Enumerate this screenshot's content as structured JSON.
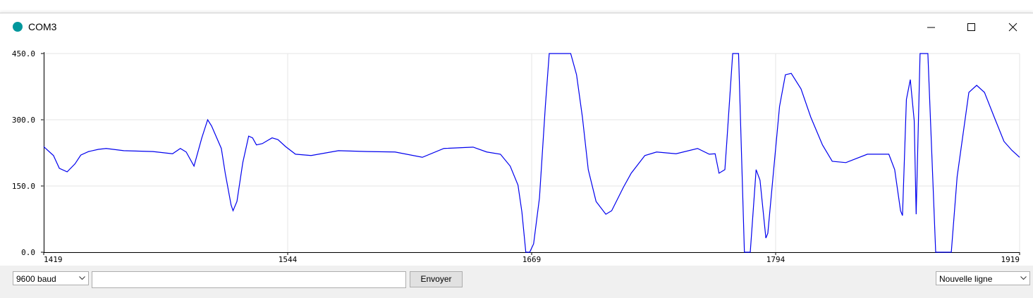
{
  "window": {
    "title": "COM3"
  },
  "footer": {
    "baud": "9600 baud",
    "send": "Envoyer",
    "line_ending": "Nouvelle ligne"
  },
  "chart_data": {
    "type": "line",
    "color": "#0000ee",
    "grid": true,
    "x": [
      1419,
      1424,
      1427,
      1431,
      1435,
      1438,
      1442,
      1447,
      1451,
      1460,
      1475,
      1485,
      1489,
      1492,
      1496,
      1500,
      1503,
      1505,
      1510,
      1512,
      1515,
      1516,
      1518,
      1521,
      1524,
      1526,
      1528,
      1531,
      1536,
      1539,
      1543,
      1548,
      1556,
      1570,
      1585,
      1599,
      1613,
      1624,
      1639,
      1646,
      1653,
      1658,
      1662,
      1664,
      1666,
      1668,
      1670,
      1673,
      1676,
      1678,
      1689,
      1692,
      1695,
      1698,
      1702,
      1707,
      1710,
      1716,
      1720,
      1727,
      1733,
      1743,
      1754,
      1760,
      1763,
      1765,
      1768,
      1769,
      1772,
      1775,
      1778,
      1781,
      1784,
      1786,
      1789,
      1790,
      1793,
      1796,
      1799,
      1802,
      1807,
      1812,
      1818,
      1823,
      1830,
      1841,
      1852,
      1855,
      1858,
      1859,
      1861,
      1863,
      1865,
      1866,
      1868,
      1872,
      1876,
      1884,
      1887,
      1893,
      1897,
      1901,
      1906,
      1911,
      1915,
      1919
    ],
    "values": [
      239,
      219,
      190,
      182,
      200,
      220,
      228,
      233,
      235,
      230,
      228,
      223,
      235,
      227,
      195,
      259,
      300,
      286,
      235,
      179,
      107,
      94,
      115,
      203,
      263,
      259,
      243,
      246,
      259,
      255,
      239,
      222,
      219,
      230,
      228,
      227,
      215,
      235,
      238,
      227,
      222,
      195,
      152,
      91,
      0,
      0,
      19,
      123,
      330,
      450,
      450,
      402,
      306,
      187,
      115,
      86,
      94,
      147,
      179,
      219,
      227,
      223,
      235,
      222,
      223,
      179,
      187,
      251,
      450,
      450,
      0,
      0,
      187,
      163,
      32,
      43,
      187,
      330,
      402,
      405,
      370,
      306,
      243,
      206,
      203,
      222,
      222,
      187,
      94,
      83,
      346,
      391,
      298,
      86,
      450,
      450,
      0,
      0,
      171,
      362,
      378,
      362,
      306,
      251,
      231,
      215
    ],
    "xlim": [
      1419,
      1919
    ],
    "xticks": [
      1419,
      1544,
      1669,
      1794,
      1919
    ],
    "ylim": [
      0,
      450
    ],
    "yticks": [
      {
        "value": 0,
        "label": "0.0"
      },
      {
        "value": 150,
        "label": "150.0"
      },
      {
        "value": 300,
        "label": "300.0"
      },
      {
        "value": 450,
        "label": "450.0"
      }
    ]
  }
}
